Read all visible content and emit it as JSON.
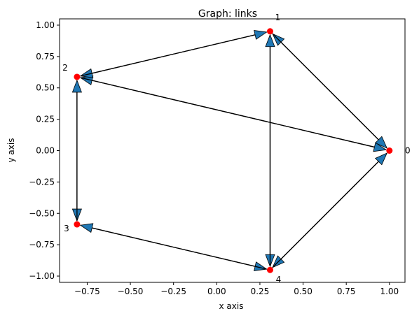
{
  "chart_data": {
    "type": "network",
    "title": "Graph: links",
    "xlabel": "x axis",
    "ylabel": "y axis",
    "xlim": [
      -0.91,
      1.09
    ],
    "ylim": [
      -1.05,
      1.05
    ],
    "xticks": [
      -0.75,
      -0.5,
      -0.25,
      0.0,
      0.25,
      0.5,
      0.75,
      1.0
    ],
    "yticks": [
      -1.0,
      -0.75,
      -0.5,
      -0.25,
      0.0,
      0.25,
      0.5,
      0.75,
      1.0
    ],
    "xtick_labels": [
      "−0.75",
      "−0.50",
      "−0.25",
      "0.00",
      "0.25",
      "0.50",
      "0.75",
      "1.00"
    ],
    "ytick_labels": [
      "−1.00",
      "−0.75",
      "−0.50",
      "−0.25",
      "0.00",
      "0.25",
      "0.50",
      "0.75",
      "1.00"
    ],
    "grid": false,
    "nodes": [
      {
        "label": "0",
        "x": 1.0,
        "y": 0.0
      },
      {
        "label": "1",
        "x": 0.309,
        "y": 0.951
      },
      {
        "label": "2",
        "x": -0.809,
        "y": 0.588
      },
      {
        "label": "3",
        "x": -0.809,
        "y": -0.588
      },
      {
        "label": "4",
        "x": 0.309,
        "y": -0.951
      }
    ],
    "edges": [
      {
        "from": "0",
        "to": "1"
      },
      {
        "from": "1",
        "to": "0"
      },
      {
        "from": "0",
        "to": "2"
      },
      {
        "from": "2",
        "to": "0"
      },
      {
        "from": "0",
        "to": "4"
      },
      {
        "from": "4",
        "to": "0"
      },
      {
        "from": "1",
        "to": "2"
      },
      {
        "from": "2",
        "to": "1"
      },
      {
        "from": "1",
        "to": "4"
      },
      {
        "from": "4",
        "to": "1"
      },
      {
        "from": "2",
        "to": "3"
      },
      {
        "from": "3",
        "to": "2"
      },
      {
        "from": "3",
        "to": "4"
      },
      {
        "from": "4",
        "to": "3"
      }
    ],
    "colors": {
      "node": "#ff0000",
      "edge": "#000000",
      "arrowhead": "#1f77b4"
    }
  }
}
